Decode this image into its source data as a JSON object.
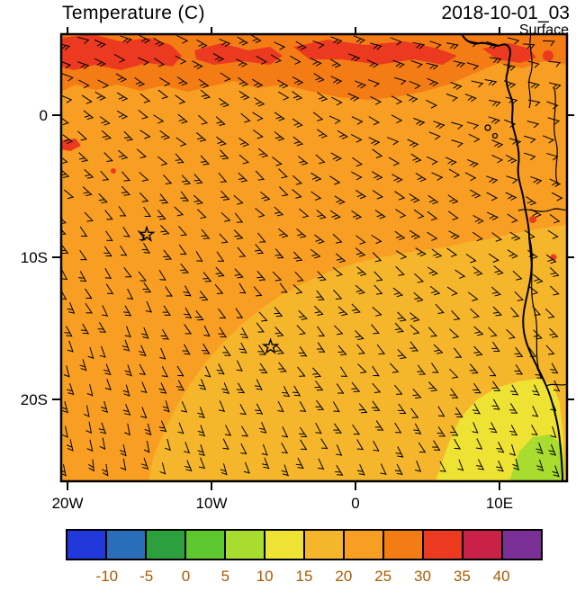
{
  "header": {
    "title": "Temperature (C)",
    "datetime": "2018-10-01_03",
    "level": "Surface"
  },
  "map": {
    "x_ticks": [
      {
        "label": "20W",
        "lon": -20
      },
      {
        "label": "10W",
        "lon": -10
      },
      {
        "label": "0",
        "lon": 0
      },
      {
        "label": "10E",
        "lon": 10
      }
    ],
    "y_ticks": [
      {
        "label": "0",
        "lat": 0
      },
      {
        "label": "10S",
        "lat": -10
      },
      {
        "label": "20S",
        "lat": -20
      }
    ]
  },
  "colorbar": {
    "labels": [
      "-10",
      "-5",
      "0",
      "5",
      "10",
      "15",
      "20",
      "25",
      "30",
      "35",
      "40"
    ],
    "colors": [
      "#2138da",
      "#2a6db8",
      "#2da03e",
      "#5ec72d",
      "#a8dc2f",
      "#eee233",
      "#f5b62c",
      "#f89e22",
      "#f47c15",
      "#eb3a20",
      "#c92147",
      "#7b2f96"
    ]
  },
  "chart_data": {
    "type": "heatmap",
    "title": "Temperature (C)",
    "time": "2018-10-01_03",
    "level": "Surface",
    "units": "C",
    "extent": {
      "lon_min": -20.44,
      "lon_max": 14.69,
      "lat_min": -25.76,
      "lat_max": 5.7
    },
    "levels": [
      -10,
      -5,
      0,
      5,
      10,
      15,
      20,
      25,
      30,
      35,
      40
    ],
    "palette": [
      "#2138da",
      "#2a6db8",
      "#2da03e",
      "#5ec72d",
      "#a8dc2f",
      "#eee233",
      "#f5b62c",
      "#f89e22",
      "#f47c15",
      "#eb3a20",
      "#c92147",
      "#7b2f96"
    ],
    "regions": [
      {
        "name": "northern-tropical-band",
        "temp_c": "25-30",
        "color": "#f47c15"
      },
      {
        "name": "hot-patches-north-edge",
        "temp_c": "30-35",
        "color": "#eb3a20"
      },
      {
        "name": "central-south-atlantic",
        "temp_c": "20-25",
        "color": "#f89e22"
      },
      {
        "name": "southeast-subtropical",
        "temp_c": "15-20",
        "color": "#f5b62c"
      },
      {
        "name": "benguela-coastal",
        "temp_c": "10-15",
        "color": "#eee233"
      },
      {
        "name": "namib-coast-corner",
        "temp_c": "5-10",
        "color": "#a8dc2f"
      }
    ],
    "wind_overlay": {
      "type": "barbs",
      "description": "southeasterly trade-wind flow turning easterly near the equator"
    },
    "markers": [
      {
        "symbol": "star",
        "lon": -14.5,
        "lat": -8.4
      },
      {
        "symbol": "star",
        "lon": -5.9,
        "lat": -16.3
      }
    ]
  }
}
